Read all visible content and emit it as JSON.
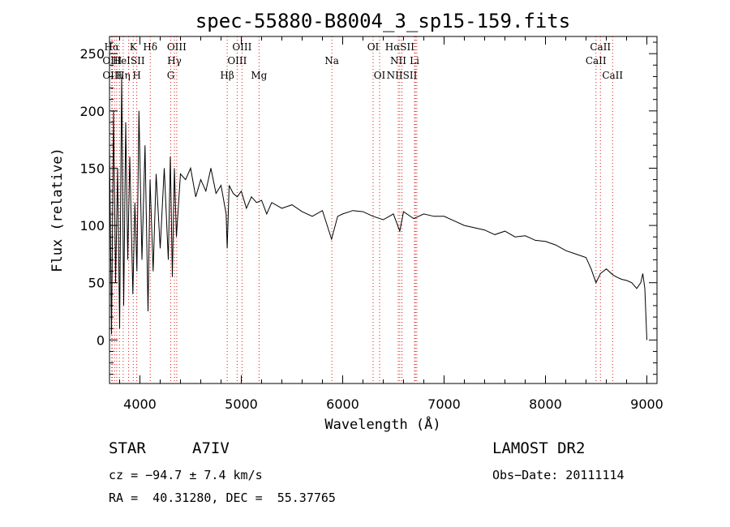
{
  "chart_data": {
    "type": "line",
    "title": "spec-55880-B8004_3_sp15-159.fits",
    "xlabel": "Wavelength (Å)",
    "ylabel": "Flux (relative)",
    "xlim": [
      3700,
      9100
    ],
    "ylim": [
      -38,
      265
    ],
    "xticks": [
      4000,
      5000,
      6000,
      7000,
      8000,
      9000
    ],
    "yticks": [
      0,
      50,
      100,
      150,
      200,
      250
    ],
    "grid": false,
    "series": [
      {
        "color": "#000000",
        "x": [
          3700,
          3720,
          3740,
          3760,
          3780,
          3800,
          3820,
          3840,
          3860,
          3880,
          3900,
          3930,
          3950,
          3970,
          3990,
          4020,
          4050,
          4080,
          4100,
          4130,
          4160,
          4200,
          4240,
          4280,
          4300,
          4320,
          4340,
          4360,
          4400,
          4450,
          4500,
          4550,
          4600,
          4650,
          4700,
          4750,
          4800,
          4850,
          4861,
          4880,
          4920,
          4960,
          5000,
          5050,
          5100,
          5150,
          5200,
          5250,
          5300,
          5400,
          5500,
          5600,
          5700,
          5800,
          5890,
          5950,
          6000,
          6100,
          6200,
          6300,
          6400,
          6500,
          6563,
          6600,
          6700,
          6800,
          6900,
          7000,
          7100,
          7200,
          7300,
          7400,
          7500,
          7600,
          7700,
          7800,
          7900,
          8000,
          8100,
          8200,
          8300,
          8400,
          8450,
          8498,
          8542,
          8600,
          8662,
          8700,
          8750,
          8800,
          8850,
          8900,
          8940,
          8960,
          8980,
          9000
        ],
        "y": [
          170,
          5,
          200,
          50,
          150,
          10,
          230,
          30,
          190,
          70,
          160,
          40,
          120,
          60,
          200,
          70,
          170,
          25,
          140,
          60,
          145,
          80,
          150,
          70,
          160,
          55,
          150,
          90,
          145,
          140,
          150,
          125,
          140,
          130,
          150,
          128,
          135,
          110,
          80,
          135,
          128,
          125,
          130,
          115,
          125,
          120,
          122,
          110,
          120,
          115,
          118,
          112,
          108,
          113,
          88,
          108,
          110,
          113,
          112,
          108,
          105,
          110,
          95,
          112,
          106,
          110,
          108,
          108,
          104,
          100,
          98,
          96,
          92,
          95,
          90,
          91,
          87,
          86,
          83,
          78,
          75,
          72,
          62,
          50,
          58,
          62,
          57,
          55,
          53,
          52,
          50,
          45,
          50,
          58,
          45,
          0
        ]
      }
    ],
    "line_markers": [
      {
        "label": "Hα",
        "wave": 3722,
        "row": 0
      },
      {
        "label": "K",
        "wave": 3934,
        "row": 0
      },
      {
        "label": "Hδ",
        "wave": 4102,
        "row": 0
      },
      {
        "label": "OIII",
        "wave": 4363,
        "row": 0
      },
      {
        "label": "OIII",
        "wave": 5007,
        "row": 0
      },
      {
        "label": "OI",
        "wave": 6300,
        "row": 0
      },
      {
        "label": "HαSII",
        "wave": 6563,
        "row": 0
      },
      {
        "label": "CaII",
        "wave": 8542,
        "row": 0
      },
      {
        "label": "OIII",
        "wave": 3727,
        "row": 1
      },
      {
        "label": "HeISII",
        "wave": 3889,
        "row": 1
      },
      {
        "label": "Hγ",
        "wave": 4340,
        "row": 1
      },
      {
        "label": "OIII",
        "wave": 4959,
        "row": 1
      },
      {
        "label": "Na",
        "wave": 5893,
        "row": 1
      },
      {
        "label": "NII",
        "wave": 6548,
        "row": 1
      },
      {
        "label": "Li",
        "wave": 6708,
        "row": 1
      },
      {
        "label": "CaII",
        "wave": 8498,
        "row": 1
      },
      {
        "label": "OIII",
        "wave": 3727,
        "row": 2
      },
      {
        "label": "Hη",
        "wave": 3835,
        "row": 2
      },
      {
        "label": "H",
        "wave": 3969,
        "row": 2
      },
      {
        "label": "G",
        "wave": 4304,
        "row": 2
      },
      {
        "label": "Hβ",
        "wave": 4861,
        "row": 2
      },
      {
        "label": "Mg",
        "wave": 5175,
        "row": 2
      },
      {
        "label": "OI",
        "wave": 6364,
        "row": 2
      },
      {
        "label": "NIISII",
        "wave": 6584,
        "row": 2
      },
      {
        "label": "CaII",
        "wave": 8662,
        "row": 2
      }
    ],
    "marker_waves": [
      3722,
      3727,
      3750,
      3771,
      3798,
      3835,
      3889,
      3934,
      3969,
      4102,
      4304,
      4340,
      4363,
      4861,
      4959,
      5007,
      5175,
      5893,
      6300,
      6364,
      6548,
      6563,
      6584,
      6708,
      6717,
      6731,
      8498,
      8542,
      8662
    ]
  },
  "info": {
    "object_class": "STAR",
    "subclass": "A7IV",
    "survey": "LAMOST DR2",
    "cz": "cz = −94.7 ± 7.4 km/s",
    "obs_date": "Obs−Date: 20111114",
    "coords": "RA =  40.31280, DEC =  55.37765"
  },
  "colors": {
    "marker": "#e01010",
    "line": "#000000"
  }
}
